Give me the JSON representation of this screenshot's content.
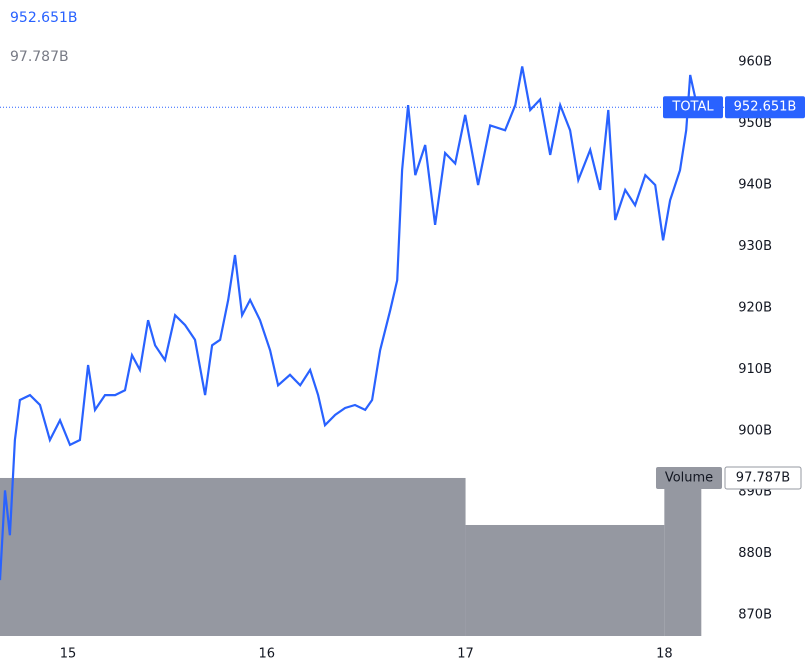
{
  "chart_data": {
    "type": "line",
    "legend_values": [
      {
        "value": 952.651,
        "label": "952.651B"
      },
      {
        "value": 97.787,
        "label": "97.787B"
      }
    ],
    "series": [
      {
        "name": "TOTAL",
        "color": "#2962ff",
        "x": [
          14.658,
          14.683,
          14.708,
          14.733,
          14.758,
          14.809,
          14.859,
          14.909,
          14.96,
          15.01,
          15.06,
          15.101,
          15.136,
          15.186,
          15.237,
          15.287,
          15.322,
          15.362,
          15.403,
          15.438,
          15.488,
          15.539,
          15.589,
          15.639,
          15.69,
          15.725,
          15.765,
          15.806,
          15.84,
          15.876,
          15.916,
          15.966,
          16.017,
          16.057,
          16.117,
          16.168,
          16.218,
          16.258,
          16.293,
          16.344,
          16.394,
          16.444,
          16.495,
          16.53,
          16.57,
          16.621,
          16.656,
          16.681,
          16.711,
          16.747,
          16.797,
          16.847,
          16.897,
          16.948,
          16.998,
          17.063,
          17.124,
          17.199,
          17.25,
          17.285,
          17.325,
          17.375,
          17.426,
          17.476,
          17.526,
          17.567,
          17.627,
          17.677,
          17.718,
          17.753,
          17.803,
          17.853,
          17.904,
          17.954,
          17.994,
          18.029,
          18.079,
          18.11,
          18.13,
          18.166
        ],
        "values": [
          875.7,
          890.3,
          883,
          898.5,
          905,
          905.8,
          904.2,
          898.5,
          901.7,
          897.7,
          898.5,
          910.7,
          903.4,
          905.8,
          905.8,
          906.6,
          912.3,
          909.9,
          918,
          913.9,
          911.5,
          918.8,
          917.2,
          914.8,
          905.8,
          913.9,
          914.8,
          921.3,
          928.6,
          918.8,
          921.3,
          918,
          913.1,
          907.4,
          909.1,
          907.4,
          909.9,
          905.8,
          900.9,
          902.6,
          903.7,
          904.2,
          903.4,
          905,
          913.1,
          919.6,
          924.5,
          942.4,
          953,
          941.6,
          946.5,
          933.5,
          945.2,
          943.5,
          951.4,
          940,
          949.7,
          948.9,
          953,
          959.3,
          952.2,
          953.9,
          944.9,
          953,
          948.9,
          940.8,
          945.7,
          939.2,
          952.2,
          934.3,
          939.2,
          936.7,
          941.6,
          940,
          931,
          937.5,
          942.4,
          948.9,
          957.9,
          952.651
        ]
      }
    ],
    "volume": {
      "name": "Volume",
      "color": "#9598a1",
      "bins": [
        14.658,
        17,
        18,
        18.186
      ],
      "values": [
        97.8,
        68.7,
        97.787
      ],
      "ylim": [
        0,
        393.6
      ]
    },
    "xlim": [
      14.658,
      18.28
    ],
    "xticks": [
      15,
      16,
      17,
      18
    ],
    "ylim": [
      866.6,
      970.1
    ],
    "yticks": [
      {
        "value": 870,
        "label": "870B"
      },
      {
        "value": 880,
        "label": "880B"
      },
      {
        "value": 890,
        "label": "890B"
      },
      {
        "value": 900,
        "label": "900B"
      },
      {
        "value": 910,
        "label": "910B"
      },
      {
        "value": 920,
        "label": "920B"
      },
      {
        "value": 930,
        "label": "930B"
      },
      {
        "value": 940,
        "label": "940B"
      },
      {
        "value": 950,
        "label": "950B"
      },
      {
        "value": 960,
        "label": "960B"
      }
    ],
    "grid": false
  }
}
